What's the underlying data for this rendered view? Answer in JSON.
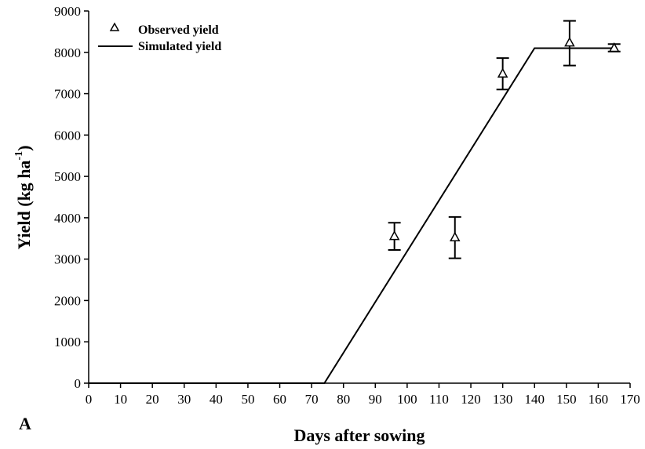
{
  "chart_data": {
    "type": "line",
    "panel_label": "A",
    "xlabel": "Days after sowing",
    "ylabel_main": "Yield (kg ha",
    "ylabel_sup": "-1",
    "ylabel_close": ")",
    "xlim": [
      0,
      170
    ],
    "ylim": [
      0,
      9000
    ],
    "x_ticks": [
      0,
      10,
      20,
      30,
      40,
      50,
      60,
      70,
      80,
      90,
      100,
      110,
      120,
      130,
      140,
      150,
      160,
      170
    ],
    "y_ticks": [
      0,
      1000,
      2000,
      3000,
      4000,
      5000,
      6000,
      7000,
      8000,
      9000
    ],
    "legend": {
      "position": "top-left",
      "observed_label": "Observed yield",
      "simulated_label": "Simulated yield"
    },
    "series": [
      {
        "name": "Simulated yield",
        "kind": "line",
        "x": [
          0,
          74,
          140,
          165
        ],
        "y": [
          0,
          0,
          8100,
          8100
        ]
      },
      {
        "name": "Observed yield",
        "kind": "points",
        "marker": "triangle",
        "x": [
          96,
          115,
          130,
          151,
          165
        ],
        "y": [
          3550,
          3520,
          7480,
          8230,
          8100
        ],
        "err_low": [
          3220,
          3020,
          7100,
          7680,
          8020
        ],
        "err_high": [
          3880,
          4020,
          7860,
          8760,
          8200
        ]
      }
    ]
  }
}
